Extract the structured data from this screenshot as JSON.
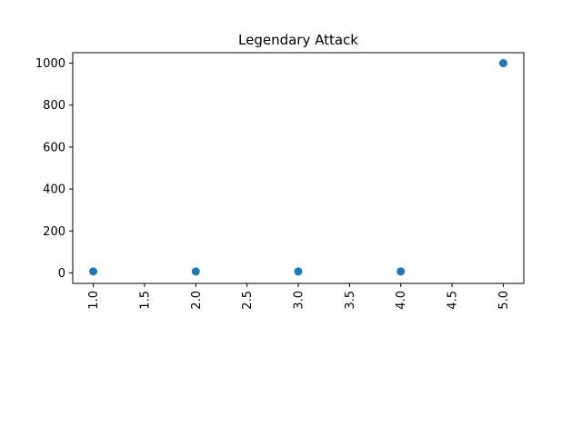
{
  "chart_data": {
    "type": "scatter",
    "title": "Legendary Attack",
    "xlabel": "",
    "ylabel": "",
    "x": [
      1,
      2,
      3,
      4,
      5
    ],
    "y": [
      7,
      7,
      7,
      7,
      1000
    ],
    "xlim": [
      0.8,
      5.2
    ],
    "ylim": [
      -50,
      1050
    ],
    "x_ticks": [
      1.0,
      1.5,
      2.0,
      2.5,
      3.0,
      3.5,
      4.0,
      4.5,
      5.0
    ],
    "x_tick_labels": [
      "1.0",
      "1.5",
      "2.0",
      "2.5",
      "3.0",
      "3.5",
      "4.0",
      "4.5",
      "5.0"
    ],
    "x_tick_label_rotation": "vertical",
    "y_ticks": [
      0,
      200,
      400,
      600,
      800,
      1000
    ],
    "y_tick_labels": [
      "0",
      "200",
      "400",
      "600",
      "800",
      "1000"
    ],
    "grid": false,
    "legend": "none",
    "marker_color": "#1f77b4"
  }
}
